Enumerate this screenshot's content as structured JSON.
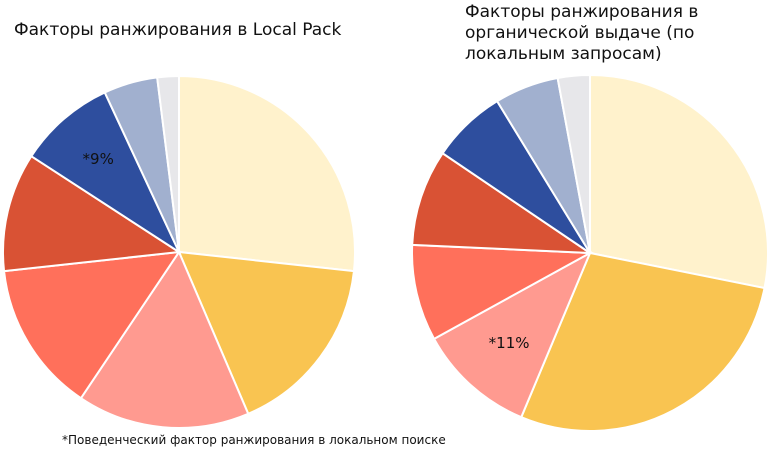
{
  "chart_data": [
    {
      "type": "pie",
      "title": "Факторы ранжирования в Local Pack",
      "colors": [
        "#FFF2CC",
        "#F9C451",
        "#FF9A90",
        "#FF705B",
        "#D95234",
        "#2E4E9E",
        "#A1B0CF",
        "#E7E7EA"
      ],
      "values": [
        27,
        17,
        16,
        14,
        11,
        9,
        5,
        2
      ],
      "slice_labels": [
        "",
        "",
        "",
        "",
        "",
        "*9%",
        "",
        ""
      ]
    },
    {
      "type": "pie",
      "title": "Факторы ранжирования в\nорганической выдаче (по\nлокальным запросам)",
      "colors": [
        "#FFF2CC",
        "#F9C451",
        "#FF9A90",
        "#FF705B",
        "#D95234",
        "#2E4E9E",
        "#A1B0CF",
        "#E7E7EA"
      ],
      "values": [
        29,
        29,
        11,
        9,
        9,
        7,
        6,
        3
      ],
      "slice_labels": [
        "",
        "",
        "*11%",
        "",
        "",
        "",
        "",
        ""
      ]
    }
  ],
  "footnote": "*Поведенческий фактор ранжирования в локальном поиске"
}
